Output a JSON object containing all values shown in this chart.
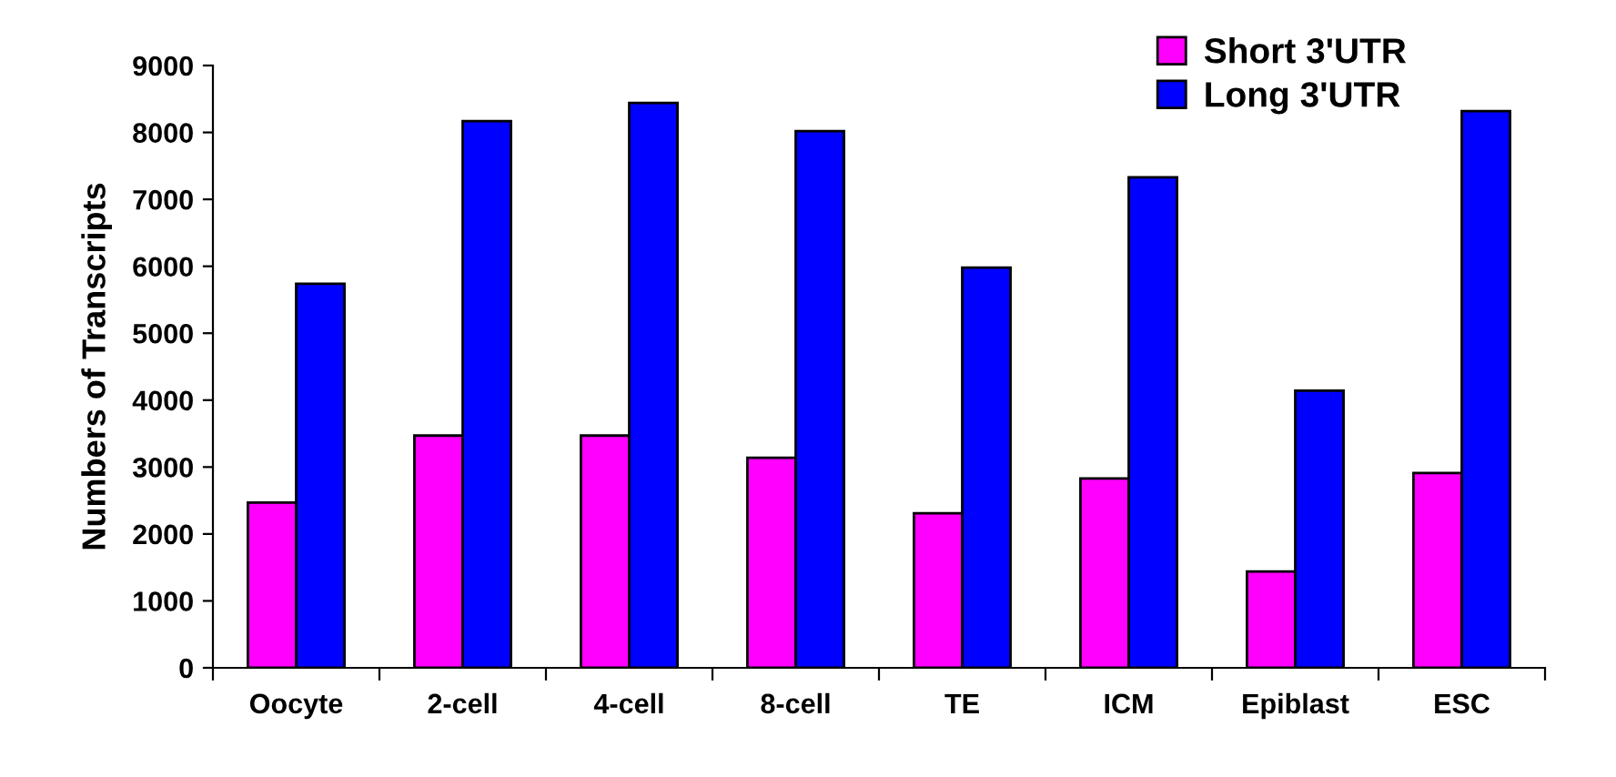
{
  "chart_data": {
    "type": "bar",
    "ylabel": "Numbers of Transcripts",
    "categories": [
      "Oocyte",
      "2-cell",
      "4-cell",
      "8-cell",
      "TE",
      "ICM",
      "Epiblast",
      "ESC"
    ],
    "series": [
      {
        "name": "Short 3'UTR",
        "color": "#ff00ff",
        "values": [
          2470,
          3470,
          3470,
          3140,
          2310,
          2830,
          1440,
          2910
        ]
      },
      {
        "name": "Long 3'UTR",
        "color": "#0000ff",
        "values": [
          5740,
          8170,
          8440,
          8020,
          5980,
          7330,
          4140,
          8320
        ]
      }
    ],
    "ylim": [
      0,
      9000
    ],
    "yticks": [
      0,
      1000,
      2000,
      3000,
      4000,
      5000,
      6000,
      7000,
      8000,
      9000
    ],
    "grid": false,
    "legend": "top right"
  }
}
